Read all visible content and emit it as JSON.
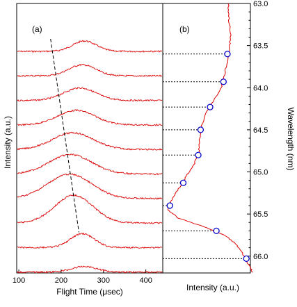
{
  "chart_data": [
    {
      "type": "line",
      "panel_label": "(a)",
      "xlabel": "Flight Time (μsec)",
      "ylabel": "Intensity (a.u.)",
      "xlim": [
        95,
        440
      ],
      "x_ticks": [
        100,
        200,
        300,
        400
      ],
      "series": [
        {
          "baseline": 0,
          "peak_x": 255,
          "peak_h": 15,
          "width": 28
        },
        {
          "baseline": 1,
          "peak_x": 250,
          "peak_h": 16,
          "width": 32
        },
        {
          "baseline": 2,
          "peak_x": 244,
          "peak_h": 18,
          "width": 38
        },
        {
          "baseline": 3,
          "peak_x": 236,
          "peak_h": 21,
          "width": 44
        },
        {
          "baseline": 4,
          "peak_x": 228,
          "peak_h": 24,
          "width": 48
        },
        {
          "baseline": 5,
          "peak_x": 222,
          "peak_h": 28,
          "width": 50
        },
        {
          "baseline": 6,
          "peak_x": 220,
          "peak_h": 35,
          "width": 52
        },
        {
          "baseline": 7,
          "peak_x": 230,
          "peak_h": 40,
          "width": 45
        },
        {
          "baseline": 8,
          "peak_x": 250,
          "peak_h": 20,
          "width": 28
        },
        {
          "baseline": 9,
          "peak_x": 255,
          "peak_h": 8,
          "width": 30
        }
      ],
      "dashed_line": {
        "x": [
          175,
          242
        ],
        "y_level": [
          0,
          8
        ]
      }
    },
    {
      "type": "line",
      "panel_label": "(b)",
      "xlabel": "Intensity (a.u.)",
      "ylabel": "Wavelength (nm)",
      "ylim": [
        63.0,
        66.2
      ],
      "y_ticks": [
        63.0,
        63.5,
        64.0,
        64.5,
        65.0,
        65.5,
        66.0
      ],
      "y_tick_labels": [
        "63.0",
        "63.5",
        "64.0",
        "64.5",
        "65.0",
        "65.5",
        "66.0"
      ],
      "markers": [
        {
          "wavelength": 63.6,
          "intensity": 0.82
        },
        {
          "wavelength": 63.93,
          "intensity": 0.77
        },
        {
          "wavelength": 64.23,
          "intensity": 0.6
        },
        {
          "wavelength": 64.5,
          "intensity": 0.48
        },
        {
          "wavelength": 64.8,
          "intensity": 0.45
        },
        {
          "wavelength": 65.13,
          "intensity": 0.26
        },
        {
          "wavelength": 65.4,
          "intensity": 0.09
        },
        {
          "wavelength": 65.7,
          "intensity": 0.68
        },
        {
          "wavelength": 66.03,
          "intensity": 1.06
        }
      ],
      "spectrum": [
        [
          63.0,
          0.83
        ],
        [
          63.2,
          0.84
        ],
        [
          63.4,
          0.86
        ],
        [
          63.55,
          0.84
        ],
        [
          63.7,
          0.82
        ],
        [
          63.85,
          0.78
        ],
        [
          64.0,
          0.74
        ],
        [
          64.15,
          0.65
        ],
        [
          64.3,
          0.55
        ],
        [
          64.45,
          0.49
        ],
        [
          64.6,
          0.47
        ],
        [
          64.75,
          0.46
        ],
        [
          64.9,
          0.4
        ],
        [
          65.05,
          0.3
        ],
        [
          65.2,
          0.2
        ],
        [
          65.35,
          0.1
        ],
        [
          65.45,
          0.07
        ],
        [
          65.55,
          0.2
        ],
        [
          65.65,
          0.52
        ],
        [
          65.75,
          0.78
        ],
        [
          65.85,
          0.92
        ],
        [
          65.95,
          1.0
        ],
        [
          66.05,
          1.06
        ],
        [
          66.15,
          1.12
        ],
        [
          66.2,
          1.14
        ]
      ],
      "colors": {
        "line": "#dd0000",
        "marker": "#0000cc",
        "dotted": "#000000"
      }
    }
  ]
}
